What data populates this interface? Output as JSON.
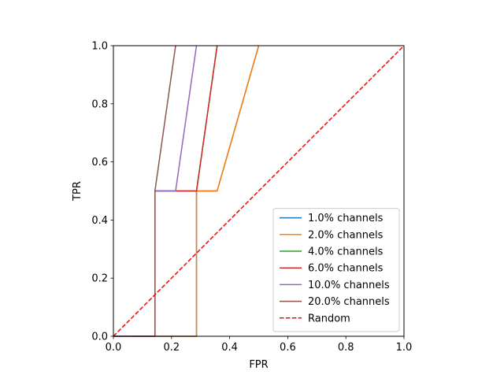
{
  "chart_data": {
    "type": "line",
    "xlabel": "FPR",
    "ylabel": "TPR",
    "xlim": [
      0.0,
      1.0
    ],
    "ylim": [
      0.0,
      1.0
    ],
    "xticks": [
      "0.0",
      "0.2",
      "0.4",
      "0.6",
      "0.8",
      "1.0"
    ],
    "yticks": [
      "0.0",
      "0.2",
      "0.4",
      "0.6",
      "0.8",
      "1.0"
    ],
    "grid": false,
    "legend_position": "lower-right",
    "series": [
      {
        "name": "1.0% channels",
        "color": "#1f77b4",
        "dashed": false,
        "x": [
          0.0,
          0.286,
          0.286,
          0.357,
          0.5
        ],
        "y": [
          0.0,
          0.0,
          0.5,
          0.5,
          1.0
        ]
      },
      {
        "name": "2.0% channels",
        "color": "#ff7f0e",
        "dashed": false,
        "x": [
          0.0,
          0.286,
          0.286,
          0.357,
          0.5
        ],
        "y": [
          0.0,
          0.0,
          0.5,
          0.5,
          1.0
        ]
      },
      {
        "name": "4.0% channels",
        "color": "#2ca02c",
        "dashed": false,
        "x": [
          0.0,
          0.143,
          0.143,
          0.286,
          0.357
        ],
        "y": [
          0.0,
          0.0,
          0.5,
          0.5,
          1.0
        ]
      },
      {
        "name": "6.0% channels",
        "color": "#d62728",
        "dashed": false,
        "x": [
          0.0,
          0.143,
          0.143,
          0.286,
          0.357
        ],
        "y": [
          0.0,
          0.0,
          0.5,
          0.5,
          1.0
        ]
      },
      {
        "name": "10.0% channels",
        "color": "#9467bd",
        "dashed": false,
        "x": [
          0.0,
          0.143,
          0.143,
          0.214,
          0.286
        ],
        "y": [
          0.0,
          0.0,
          0.5,
          0.5,
          1.0
        ]
      },
      {
        "name": "20.0% channels",
        "color": "#8c564b",
        "dashed": false,
        "x": [
          0.071,
          0.143,
          0.143,
          0.214
        ],
        "y": [
          0.0,
          0.0,
          0.5,
          1.0
        ]
      },
      {
        "name": "Random",
        "color": "#ff0000",
        "dashed": true,
        "x": [
          0.0,
          1.0
        ],
        "y": [
          0.0,
          1.0
        ]
      }
    ]
  }
}
